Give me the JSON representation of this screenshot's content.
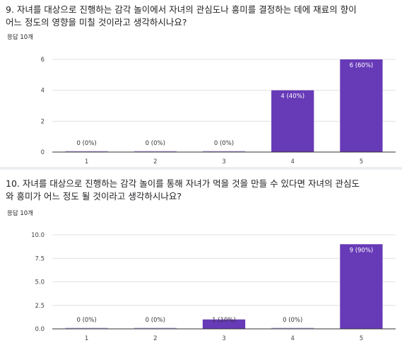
{
  "questions": [
    {
      "title": "9. 자녀를 대상으로 진행하는 감각 놀이에서 자녀의 관심도나 흥미를 결정하는 데에 재료의 향이\n어느 정도의 영향을 미칠 것이라고 생각하시나요?",
      "responses": "응답 10개"
    },
    {
      "title": "10. 자녀를 대상으로 진행하는 감각 놀이를 통해 자녀가 먹을 것을 만들 수 있다면 자녀의 관심도\n와 흥미가 어느 정도 될 것이라고 생각하시나요?",
      "responses": "응답 10개"
    }
  ],
  "chart_data": [
    {
      "type": "bar",
      "categories": [
        "1",
        "2",
        "3",
        "4",
        "5"
      ],
      "values": [
        0,
        0,
        0,
        4,
        6
      ],
      "data_labels": [
        "0 (0%)",
        "0 (0%)",
        "0 (0%)",
        "4 (40%)",
        "6 (60%)"
      ],
      "ylim": [
        0,
        6
      ],
      "yticks": [
        "0",
        "2",
        "4",
        "6"
      ],
      "ytick_values": [
        0,
        2,
        4,
        6
      ],
      "grid": true,
      "bar_color": "#673ab7"
    },
    {
      "type": "bar",
      "categories": [
        "1",
        "2",
        "3",
        "4",
        "5"
      ],
      "values": [
        0,
        0,
        1,
        0,
        9
      ],
      "data_labels": [
        "0 (0%)",
        "0 (0%)",
        "1 (10%)",
        "0 (0%)",
        "9 (90%)"
      ],
      "ylim": [
        0,
        10
      ],
      "yticks": [
        "0.0",
        "2.5",
        "5.0",
        "7.5",
        "10.0"
      ],
      "ytick_values": [
        0,
        2.5,
        5,
        7.5,
        10
      ],
      "grid": true,
      "bar_color": "#673ab7"
    }
  ]
}
